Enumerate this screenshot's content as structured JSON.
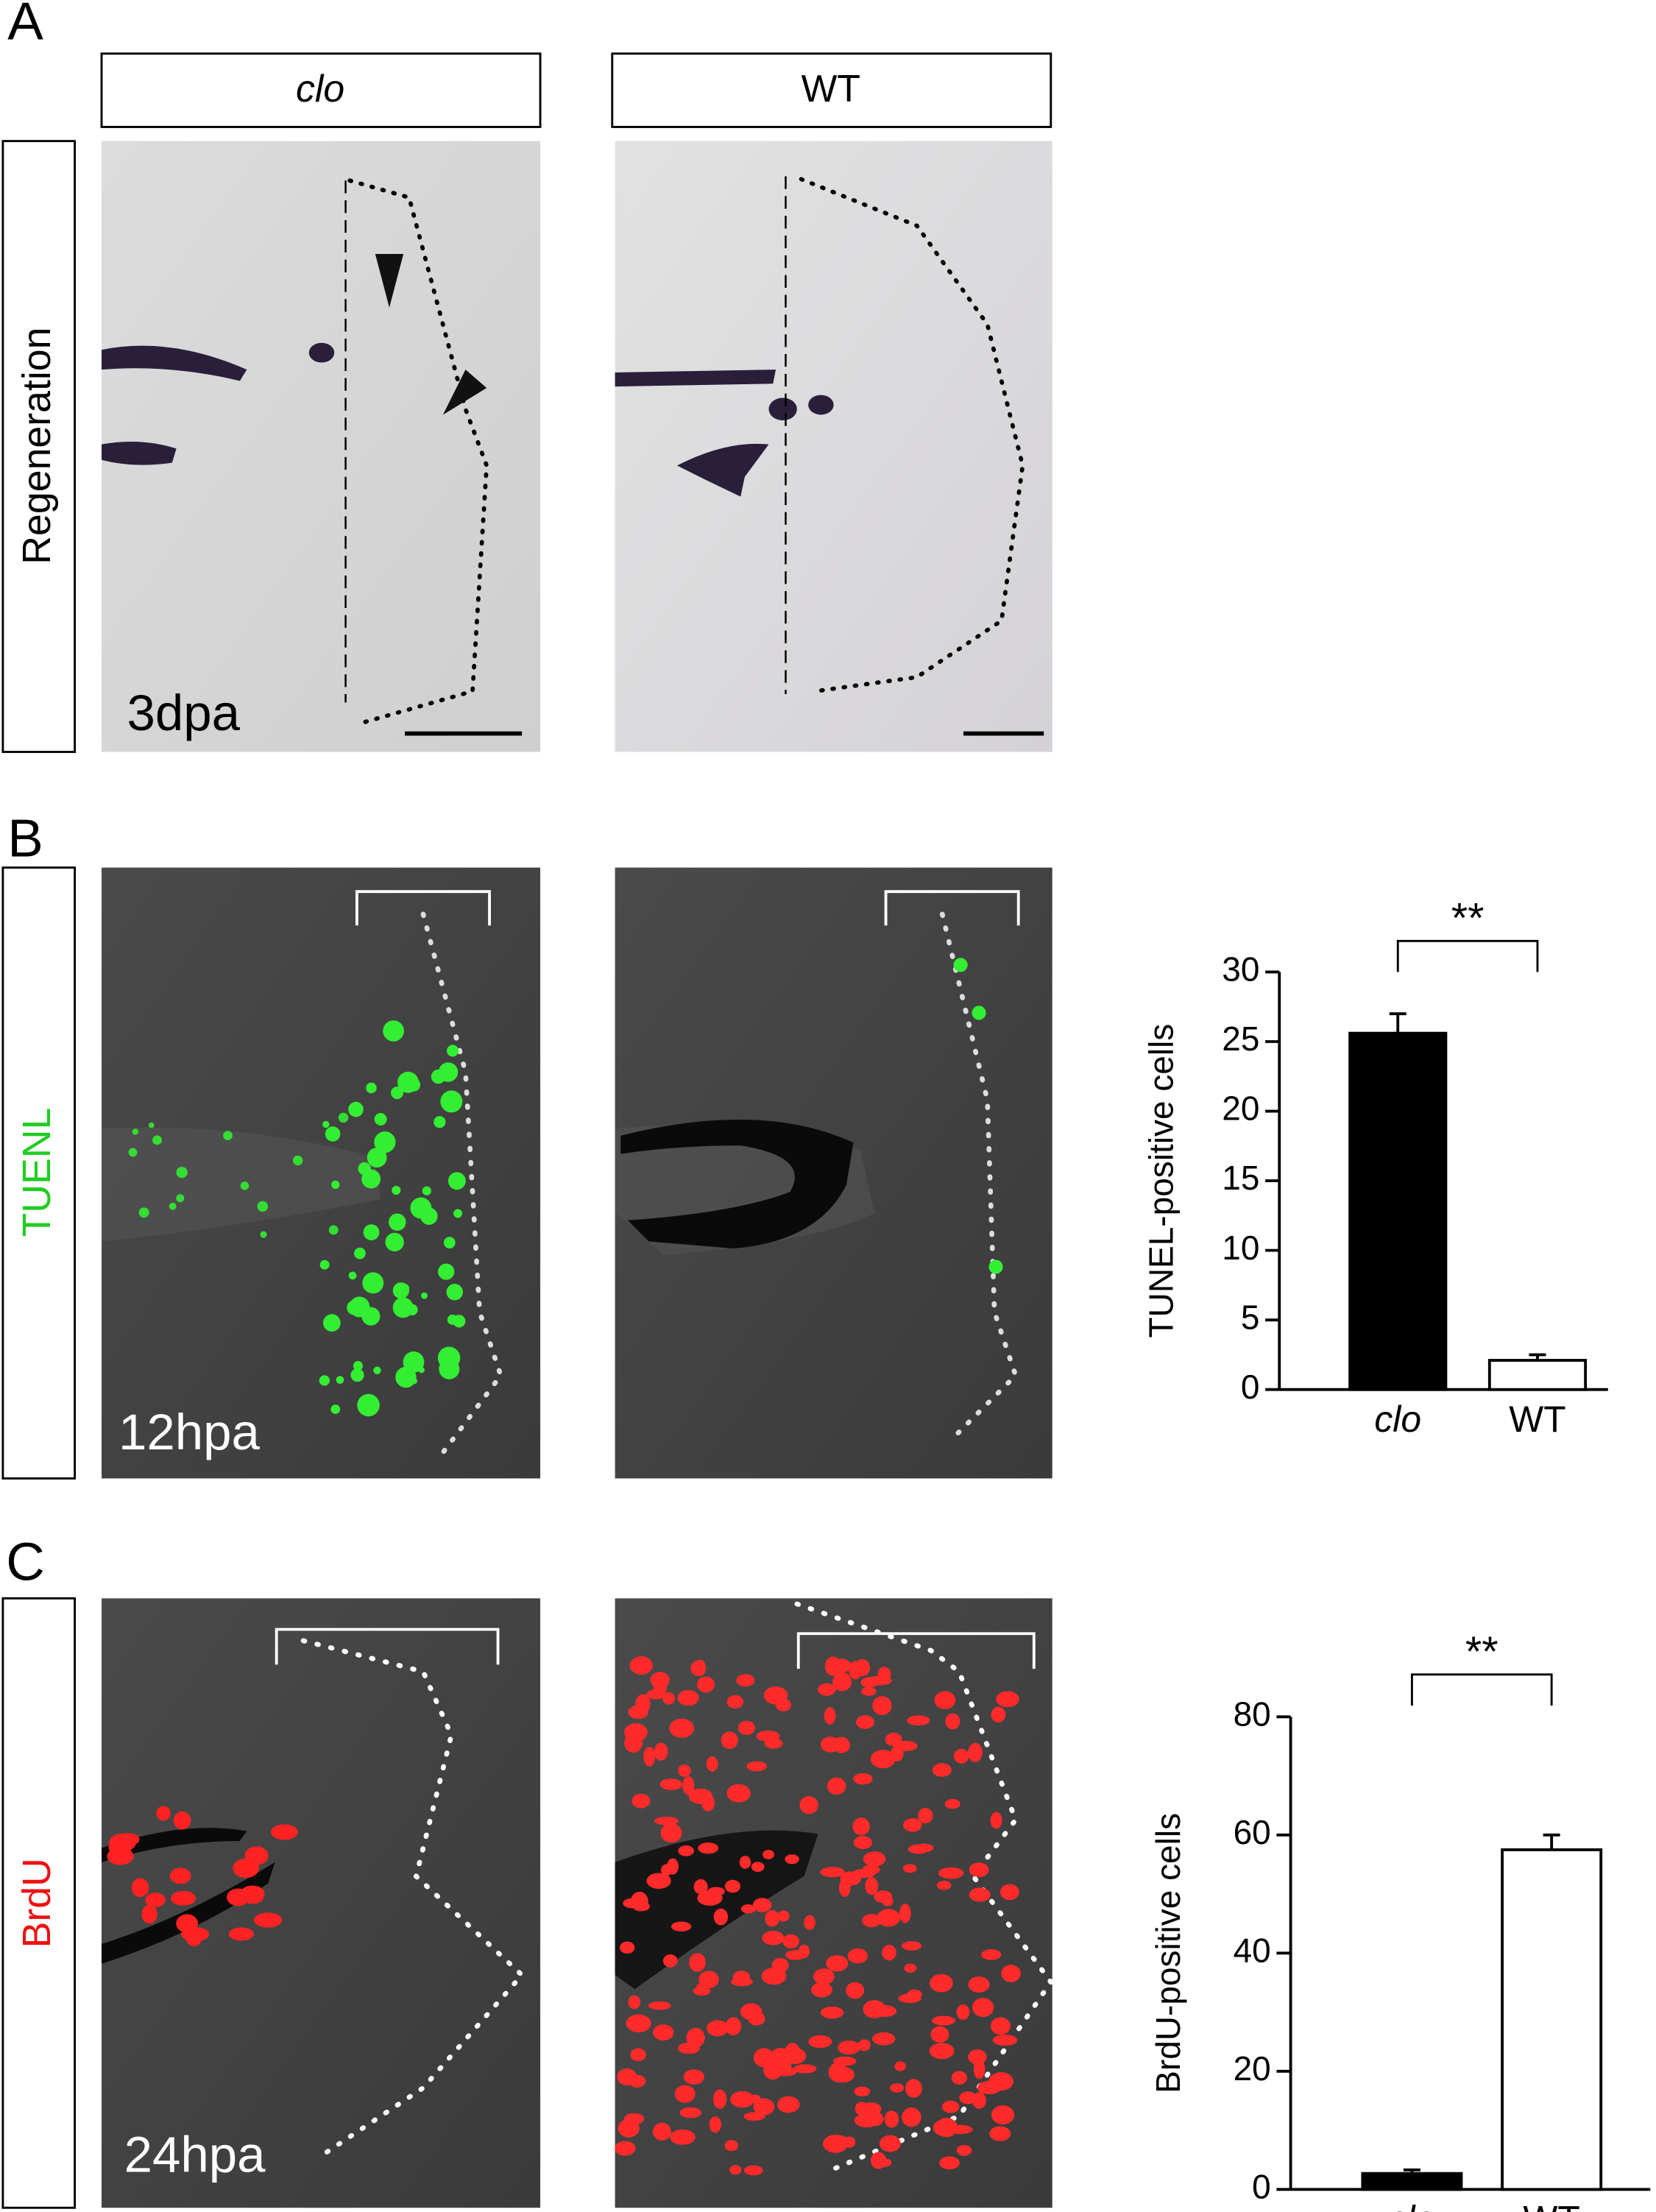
{
  "panel_labels": [
    "A",
    "B",
    "C"
  ],
  "column_headers": [
    "clo",
    "WT"
  ],
  "row_labels": [
    "Regeneration",
    "TUENL",
    "BrdU"
  ],
  "timepoints": [
    "3dpa",
    "12hpa",
    "24hpa"
  ],
  "chart_data": [
    {
      "type": "bar",
      "ylabel": "TUNEL-positive cells",
      "categories": [
        "clo",
        "WT"
      ],
      "category_style": [
        "italic",
        "normal"
      ],
      "values": [
        25.6,
        2.1
      ],
      "errors": [
        1.4,
        0.4
      ],
      "colors": [
        "#000000",
        "#ffffff"
      ],
      "ylim": [
        0,
        30
      ],
      "yticks": [
        0,
        5,
        10,
        15,
        20,
        25,
        30
      ],
      "significance": "**"
    },
    {
      "type": "bar",
      "ylabel": "BrdU-positive cells",
      "categories": [
        "clo",
        "WT"
      ],
      "category_style": [
        "italic",
        "normal"
      ],
      "values": [
        2.7,
        57.5
      ],
      "errors": [
        0.6,
        2.5
      ],
      "colors": [
        "#000000",
        "#ffffff"
      ],
      "ylim": [
        0,
        80
      ],
      "yticks": [
        0,
        20,
        40,
        60,
        80
      ],
      "significance": "**"
    }
  ]
}
